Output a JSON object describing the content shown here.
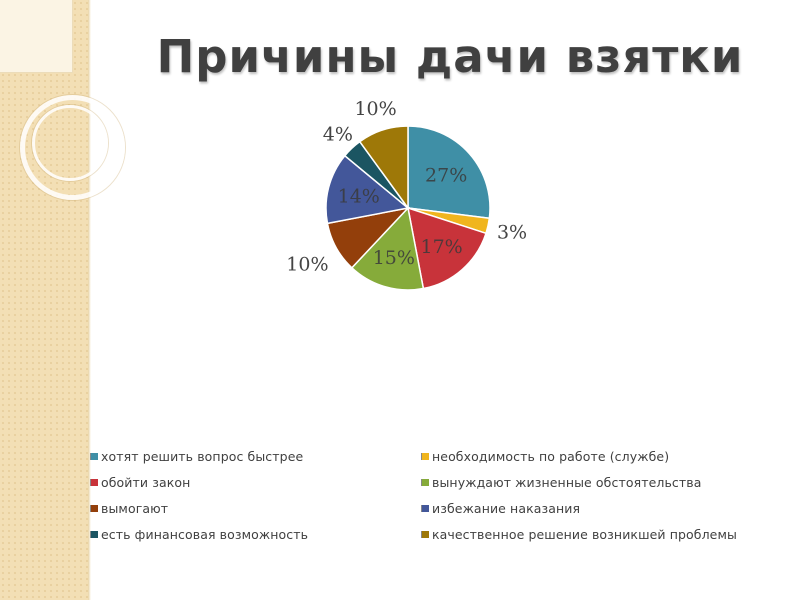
{
  "title": "Причины дачи взятки",
  "chart_data": {
    "type": "pie",
    "title": "Причины дачи взятки",
    "categories": [
      "хотят решить вопрос быстрее",
      "необходимость по работе (службе)",
      "обойти закон",
      "вынуждают жизненные обстоятельства",
      "вымогают",
      "избежание наказания",
      "есть финансовая возможность",
      "качественное решение возникшей проблемы"
    ],
    "values": [
      27,
      3,
      17,
      15,
      10,
      14,
      4,
      10
    ],
    "labels": [
      "27%",
      "3%",
      "17%",
      "15%",
      "10%",
      "14%",
      "4%",
      "10%"
    ],
    "colors": [
      "#3f8fa6",
      "#f0b51d",
      "#c8333a",
      "#86ab3a",
      "#933f0b",
      "#43579a",
      "#1b5562",
      "#9e7808"
    ],
    "legend_position": "bottom"
  }
}
